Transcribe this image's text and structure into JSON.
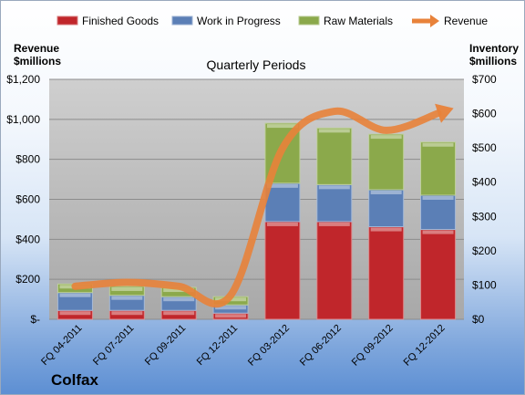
{
  "chart_data": {
    "type": "bar",
    "subtitle": "Quarterly Periods",
    "company": "Colfax",
    "left_axis_label": [
      "Revenue",
      "$millions"
    ],
    "right_axis_label": [
      "Inventory",
      "$millions"
    ],
    "categories": [
      "FQ 04-2011",
      "FQ 07-2011",
      "FQ 09-2011",
      "FQ 12-2011",
      "FQ 03-2012",
      "FQ 06-2012",
      "FQ 09-2012",
      "FQ 12-2012"
    ],
    "left_ticks": [
      "$-",
      "$200",
      "$400",
      "$600",
      "$800",
      "$1,000",
      "$1,200"
    ],
    "right_ticks": [
      "$0",
      "$100",
      "$200",
      "$300",
      "$400",
      "$500",
      "$600",
      "$700"
    ],
    "ylim_left": [
      0,
      1200
    ],
    "ylim_right": [
      0,
      700
    ],
    "legend_position": "top",
    "grid": true,
    "series": [
      {
        "name": "Finished Goods",
        "axis": "right",
        "color": "#c0262b",
        "values": [
          26,
          26,
          26,
          18,
          285,
          285,
          270,
          262
        ]
      },
      {
        "name": "Work in Progress",
        "axis": "right",
        "color": "#5b7fb6",
        "values": [
          52,
          44,
          40,
          24,
          112,
          108,
          108,
          100
        ]
      },
      {
        "name": "Raw Materials",
        "axis": "right",
        "color": "#8ba94b",
        "values": [
          25,
          26,
          27,
          24,
          175,
          165,
          162,
          155
        ]
      }
    ],
    "line_series": {
      "name": "Revenue",
      "axis": "left",
      "color": "#e8823a",
      "values": [
        165,
        185,
        165,
        120,
        855,
        1040,
        945,
        1030
      ]
    }
  }
}
